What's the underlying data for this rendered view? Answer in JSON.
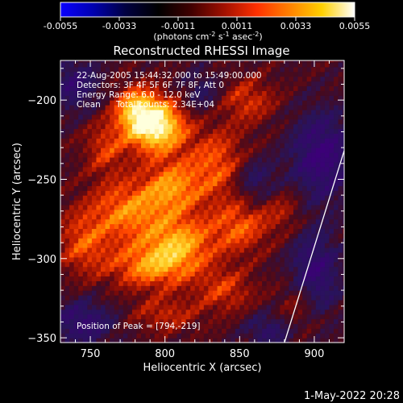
{
  "colorbar": {
    "ticks": [
      "-0.0055",
      "-0.0033",
      "-0.0011",
      "0.0011",
      "0.0033",
      "0.0055"
    ],
    "tick_values": [
      -0.0055,
      -0.0033,
      -0.0011,
      0.0011,
      0.0033,
      0.0055
    ],
    "units_main": "(photons cm",
    "units_sup1": "-2",
    "units_mid": " s",
    "units_sup2": "-1",
    "units_mid2": " asec",
    "units_sup3": "-2",
    "units_end": ")",
    "range": [
      -0.0055,
      0.0055
    ],
    "colormap": [
      "#0a00ff",
      "#0000b0",
      "#000040",
      "#000000",
      "#400000",
      "#a01000",
      "#ff3000",
      "#ff8000",
      "#ffd000",
      "#ffffff"
    ]
  },
  "chart_data": {
    "type": "heatmap",
    "title": "Reconstructed RHESSI Image",
    "xlabel": "Heliocentric X (arcsec)",
    "ylabel": "Heliocentric Y (arcsec)",
    "xlim": [
      730,
      920
    ],
    "ylim": [
      -353,
      -175
    ],
    "xticks": [
      750,
      800,
      850,
      900
    ],
    "yticks": [
      -200,
      -250,
      -300,
      -350
    ],
    "annotations": [
      "22-Aug-2005 15:44:32.000 to 15:49:00.000",
      "Detectors: 3F 4F 5F 6F 7F 8F, Att 0",
      "Energy Range: 6.0 - 12.0 keV",
      "Clean",
      "Total counts: 2.34E+04"
    ],
    "peak_label": "Position of Peak = [794,-219]",
    "peak": [
      794,
      -219
    ],
    "limb_line": [
      [
        880,
        -353
      ],
      [
        920,
        -232
      ]
    ],
    "hot_blobs": [
      {
        "x": 794,
        "y": -216,
        "sx": 14,
        "sy": 12,
        "a": 1.0
      },
      {
        "x": 780,
        "y": -205,
        "sx": 10,
        "sy": 10,
        "a": 0.55
      },
      {
        "x": 805,
        "y": -255,
        "sx": 14,
        "sy": 12,
        "a": 0.55
      },
      {
        "x": 775,
        "y": -270,
        "sx": 18,
        "sy": 14,
        "a": 0.55
      },
      {
        "x": 810,
        "y": -290,
        "sx": 16,
        "sy": 12,
        "a": 0.6
      },
      {
        "x": 790,
        "y": -305,
        "sx": 20,
        "sy": 10,
        "a": 0.55
      },
      {
        "x": 835,
        "y": -240,
        "sx": 14,
        "sy": 16,
        "a": 0.45
      },
      {
        "x": 850,
        "y": -280,
        "sx": 14,
        "sy": 12,
        "a": 0.45
      },
      {
        "x": 745,
        "y": -290,
        "sx": 12,
        "sy": 14,
        "a": 0.4
      },
      {
        "x": 760,
        "y": -230,
        "sx": 10,
        "sy": 12,
        "a": 0.35
      },
      {
        "x": 855,
        "y": -200,
        "sx": 14,
        "sy": 10,
        "a": 0.35
      },
      {
        "x": 840,
        "y": -320,
        "sx": 14,
        "sy": 10,
        "a": 0.35
      },
      {
        "x": 800,
        "y": -335,
        "sx": 16,
        "sy": 8,
        "a": 0.3
      },
      {
        "x": 890,
        "y": -330,
        "sx": 10,
        "sy": 12,
        "a": 0.3
      },
      {
        "x": 880,
        "y": -270,
        "sx": 10,
        "sy": 10,
        "a": 0.25
      }
    ],
    "cold_blobs": [
      {
        "x": 905,
        "y": -235,
        "sx": 15,
        "sy": 20,
        "a": 0.55
      },
      {
        "x": 900,
        "y": -310,
        "sx": 12,
        "sy": 20,
        "a": 0.5
      },
      {
        "x": 740,
        "y": -190,
        "sx": 12,
        "sy": 12,
        "a": 0.4
      },
      {
        "x": 745,
        "y": -340,
        "sx": 15,
        "sy": 10,
        "a": 0.45
      },
      {
        "x": 860,
        "y": -250,
        "sx": 10,
        "sy": 10,
        "a": 0.35
      },
      {
        "x": 825,
        "y": -195,
        "sx": 10,
        "sy": 10,
        "a": 0.3
      },
      {
        "x": 870,
        "y": -345,
        "sx": 12,
        "sy": 8,
        "a": 0.35
      }
    ]
  },
  "timestamp": "1-May-2022 20:28"
}
